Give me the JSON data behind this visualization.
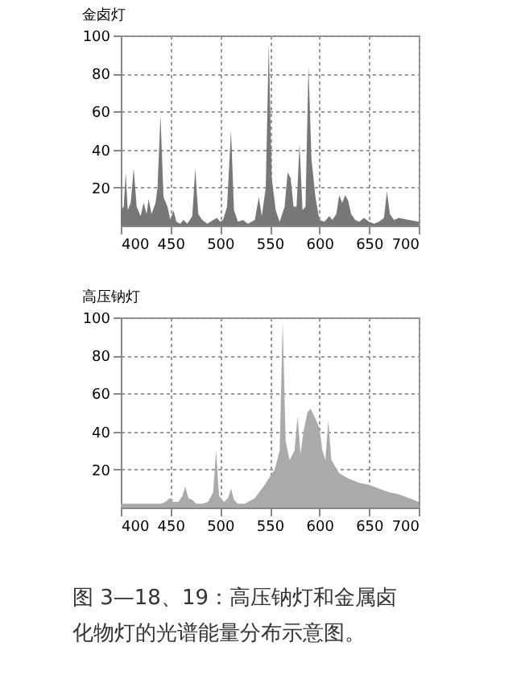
{
  "chart_data": [
    {
      "type": "area",
      "title": "金卤灯",
      "xlim": [
        400,
        700
      ],
      "xticks": [
        400,
        450,
        500,
        550,
        600,
        650,
        700
      ],
      "ylim": [
        0,
        100
      ],
      "yticks": [
        20,
        40,
        60,
        80,
        100
      ],
      "grid": true,
      "series": [
        {
          "color": "#777777",
          "x": [
            400,
            403,
            405,
            407,
            410,
            413,
            416,
            420,
            423,
            426,
            428,
            431,
            435,
            437,
            440,
            443,
            447,
            450,
            453,
            456,
            460,
            463,
            467,
            472,
            475,
            478,
            482,
            487,
            493,
            497,
            500,
            503,
            507,
            511,
            514,
            518,
            523,
            528,
            535,
            539,
            542,
            546,
            549,
            552,
            556,
            560,
            565,
            568,
            571,
            574,
            577,
            580,
            583,
            586,
            589,
            592,
            596,
            600,
            605,
            610,
            613,
            617,
            620,
            623,
            626,
            629,
            632,
            636,
            640,
            645,
            650,
            655,
            660,
            665,
            668,
            671,
            675,
            680,
            690,
            700
          ],
          "values": [
            8,
            10,
            28,
            8,
            12,
            30,
            10,
            5,
            12,
            6,
            14,
            6,
            12,
            20,
            58,
            15,
            10,
            3,
            8,
            2,
            1,
            3,
            1,
            5,
            30,
            6,
            3,
            1,
            3,
            4,
            2,
            3,
            10,
            50,
            8,
            2,
            3,
            1,
            3,
            15,
            5,
            20,
            96,
            25,
            8,
            2,
            10,
            28,
            25,
            10,
            10,
            43,
            8,
            10,
            84,
            35,
            15,
            3,
            2,
            5,
            3,
            6,
            16,
            12,
            16,
            13,
            6,
            3,
            2,
            4,
            2,
            1,
            2,
            4,
            18,
            6,
            3,
            4,
            3,
            2
          ]
        }
      ]
    },
    {
      "type": "area",
      "title": "高压钠灯",
      "xlim": [
        400,
        700
      ],
      "xticks": [
        400,
        450,
        500,
        550,
        600,
        650,
        700
      ],
      "ylim": [
        0,
        100
      ],
      "yticks": [
        20,
        40,
        60,
        80,
        100
      ],
      "grid": true,
      "annotations": [
        "图 3—18、19：高压钠灯和金属卤化物灯的光谱能量分布示意图。"
      ],
      "series": [
        {
          "color": "#aaaaaa",
          "x": [
            400,
            420,
            440,
            445,
            449,
            453,
            458,
            462,
            465,
            468,
            472,
            476,
            482,
            488,
            493,
            496,
            499,
            504,
            508,
            511,
            514,
            518,
            525,
            535,
            545,
            555,
            560,
            563,
            566,
            570,
            575,
            578,
            581,
            584,
            588,
            591,
            595,
            600,
            603,
            606,
            609,
            612,
            620,
            630,
            640,
            650,
            660,
            670,
            680,
            690,
            700
          ],
          "values": [
            2,
            2,
            2,
            3,
            5,
            3,
            3,
            6,
            11,
            5,
            4,
            2,
            2,
            3,
            8,
            30,
            6,
            3,
            5,
            10,
            4,
            2,
            2,
            5,
            12,
            20,
            30,
            98,
            35,
            25,
            30,
            48,
            28,
            40,
            50,
            52,
            48,
            42,
            30,
            25,
            46,
            25,
            18,
            15,
            13,
            12,
            10,
            8,
            7,
            5,
            3
          ]
        }
      ]
    }
  ]
}
